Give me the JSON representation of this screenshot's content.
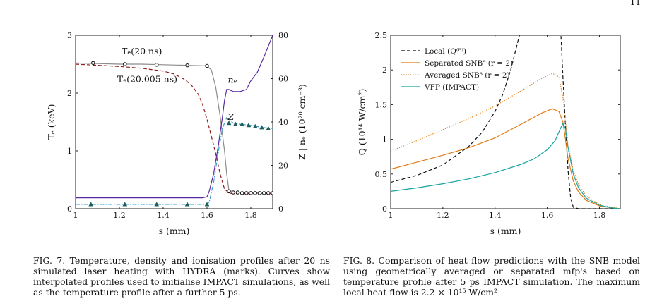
{
  "page_number": "11",
  "figure7": {
    "caption": "FIG. 7.   Temperature, density and ionisation profiles after 20 ns simulated laser heating with HYDRA (marks). Curves show interpolated profiles used to initialise IMPACT simulations, as well as the temperature profile after a further 5 ps."
  },
  "figure8": {
    "caption": "FIG. 8.   Comparison of heat flow predictions with the SNB model using geometrically averaged or separated mfp's based on temperature profile after 5 ps IMPACT simulation. The maximum local heat flow is 2.2 × 10¹⁵ W/cm²"
  },
  "chart_data": [
    {
      "type": "line",
      "xlabel": "s (mm)",
      "ylabel": "Tₑ (keV)",
      "y2label": "Z | nₑ (10²⁰ cm⁻³)",
      "xlim": [
        1.0,
        1.9
      ],
      "ylim": [
        0,
        3
      ],
      "y2lim": [
        0,
        80
      ],
      "xticks": [
        "1",
        "1.2",
        "1.4",
        "1.6",
        "1.8"
      ],
      "yticks": [
        "0",
        "1",
        "2",
        "3"
      ],
      "y2ticks": [
        "0",
        "20",
        "40",
        "60",
        "80"
      ],
      "grid": false,
      "annotations": {
        "te20": "Tₑ(20 ns)",
        "te20005": "Tₑ(20.005 ns)",
        "ne": "nₑ",
        "z": "Z"
      },
      "series": [
        {
          "axis": "left",
          "color": "#8c8c8c",
          "style": "solid",
          "x": [
            1.0,
            1.1,
            1.2,
            1.3,
            1.4,
            1.5,
            1.6,
            1.62,
            1.64,
            1.66,
            1.68,
            1.69,
            1.7,
            1.72,
            1.75,
            1.8,
            1.85,
            1.9
          ],
          "y": [
            2.52,
            2.51,
            2.5,
            2.5,
            2.49,
            2.48,
            2.47,
            2.4,
            2.1,
            1.6,
            1.0,
            0.6,
            0.32,
            0.29,
            0.28,
            0.27,
            0.27,
            0.27
          ]
        },
        {
          "axis": "left",
          "color": "#8b1a1a",
          "style": "dashed",
          "x": [
            1.0,
            1.1,
            1.2,
            1.3,
            1.4,
            1.45,
            1.5,
            1.53,
            1.56,
            1.58,
            1.6,
            1.62,
            1.64,
            1.66,
            1.68,
            1.7,
            1.72,
            1.75,
            1.8,
            1.85,
            1.9
          ],
          "y": [
            2.5,
            2.48,
            2.46,
            2.43,
            2.38,
            2.33,
            2.23,
            2.13,
            1.98,
            1.8,
            1.55,
            1.25,
            0.95,
            0.6,
            0.34,
            0.27,
            0.26,
            0.26,
            0.26,
            0.26,
            0.26
          ]
        },
        {
          "axis": "left",
          "color": "#1a1a1a",
          "style": "markers-circle",
          "x": [
            1.08,
            1.225,
            1.37,
            1.51,
            1.6,
            1.7,
            1.72,
            1.74,
            1.76,
            1.78,
            1.8,
            1.82,
            1.84,
            1.86,
            1.88,
            1.9
          ],
          "y": [
            2.52,
            2.5,
            2.49,
            2.48,
            2.47,
            0.3,
            0.28,
            0.28,
            0.27,
            0.27,
            0.27,
            0.27,
            0.27,
            0.27,
            0.27,
            0.27
          ]
        },
        {
          "axis": "right",
          "color": "#5a2aa0",
          "style": "solid",
          "x": [
            1.0,
            1.2,
            1.4,
            1.58,
            1.6,
            1.61,
            1.63,
            1.65,
            1.67,
            1.68,
            1.69,
            1.7,
            1.72,
            1.75,
            1.78,
            1.8,
            1.83,
            1.86,
            1.88,
            1.9
          ],
          "y": [
            5,
            5,
            5,
            5,
            5.5,
            8,
            16,
            28,
            42,
            50,
            55,
            55,
            54,
            54,
            55,
            59,
            63,
            70,
            75,
            80
          ]
        },
        {
          "axis": "right",
          "color": "#3a9ccf",
          "style": "dashdot",
          "x": [
            1.0,
            1.2,
            1.4,
            1.6,
            1.61,
            1.63,
            1.65,
            1.67,
            1.69,
            1.7,
            1.72,
            1.75,
            1.8,
            1.85,
            1.9
          ],
          "y": [
            2,
            2,
            2,
            2,
            3,
            12,
            25,
            37,
            42,
            41,
            39.5,
            39,
            38.5,
            37.5,
            37
          ]
        },
        {
          "axis": "right",
          "color": "#1f5f5a",
          "style": "markers-triangle",
          "x": [
            1.07,
            1.225,
            1.37,
            1.51,
            1.6,
            1.7,
            1.73,
            1.76,
            1.79,
            1.82,
            1.85,
            1.88
          ],
          "y": [
            2,
            2,
            2,
            2,
            2,
            39.5,
            39,
            39,
            38.5,
            38,
            37.5,
            37
          ]
        }
      ]
    },
    {
      "type": "line",
      "xlabel": "s (mm)",
      "ylabel": "Q (10¹⁴ W/cm²)",
      "xlim": [
        1.0,
        1.88
      ],
      "ylim": [
        0,
        2.5
      ],
      "xticks": [
        "1",
        "1.2",
        "1.4",
        "1.6",
        "1.8"
      ],
      "yticks": [
        "0",
        "0.5",
        "1",
        "1.5",
        "2",
        "2.5"
      ],
      "grid": false,
      "legend_position": "top-left",
      "series": [
        {
          "name": "Local (Q⁽ᴮ⁾)",
          "color": "#111111",
          "style": "dashed",
          "x": [
            1.0,
            1.1,
            1.2,
            1.3,
            1.35,
            1.4,
            1.43,
            1.46,
            1.48,
            1.5,
            1.651,
            1.654,
            1.66,
            1.67,
            1.68,
            1.69,
            1.7,
            1.72,
            1.75,
            1.8,
            1.88
          ],
          "y": [
            0.38,
            0.48,
            0.63,
            0.9,
            1.1,
            1.4,
            1.65,
            2.0,
            2.3,
            2.6,
            2.6,
            2.4,
            1.9,
            1.2,
            0.55,
            0.15,
            0.02,
            0.0,
            0.0,
            0.0,
            0.0
          ]
        },
        {
          "name": "Separated SNB⁹ (r = 2)",
          "color": "#e07b12",
          "style": "solid",
          "x": [
            1.0,
            1.1,
            1.2,
            1.3,
            1.4,
            1.5,
            1.58,
            1.62,
            1.645,
            1.66,
            1.67,
            1.68,
            1.7,
            1.72,
            1.75,
            1.8,
            1.85,
            1.88
          ],
          "y": [
            0.57,
            0.67,
            0.77,
            0.88,
            1.02,
            1.22,
            1.38,
            1.44,
            1.4,
            1.25,
            1.0,
            0.72,
            0.4,
            0.24,
            0.12,
            0.04,
            0.01,
            0.0
          ]
        },
        {
          "name": "Averaged SNB⁸ (r = 2)",
          "color": "#e07b12",
          "style": "dotted",
          "x": [
            1.0,
            1.1,
            1.2,
            1.3,
            1.4,
            1.5,
            1.58,
            1.62,
            1.645,
            1.66,
            1.67,
            1.68,
            1.7,
            1.72,
            1.75,
            1.8,
            1.85,
            1.88
          ],
          "y": [
            0.83,
            0.98,
            1.14,
            1.3,
            1.48,
            1.7,
            1.88,
            1.95,
            1.9,
            1.6,
            1.25,
            0.92,
            0.55,
            0.35,
            0.18,
            0.06,
            0.02,
            0.0
          ]
        },
        {
          "name": "VFP (IMPACT)",
          "color": "#17a3a3",
          "style": "solid",
          "x": [
            1.0,
            1.1,
            1.2,
            1.3,
            1.4,
            1.5,
            1.55,
            1.6,
            1.63,
            1.65,
            1.66,
            1.67,
            1.68,
            1.7,
            1.72,
            1.75,
            1.8,
            1.85,
            1.88
          ],
          "y": [
            0.25,
            0.3,
            0.36,
            0.43,
            0.52,
            0.64,
            0.72,
            0.85,
            0.98,
            1.15,
            1.23,
            1.15,
            0.88,
            0.5,
            0.3,
            0.15,
            0.05,
            0.01,
            0.0
          ]
        }
      ]
    }
  ]
}
